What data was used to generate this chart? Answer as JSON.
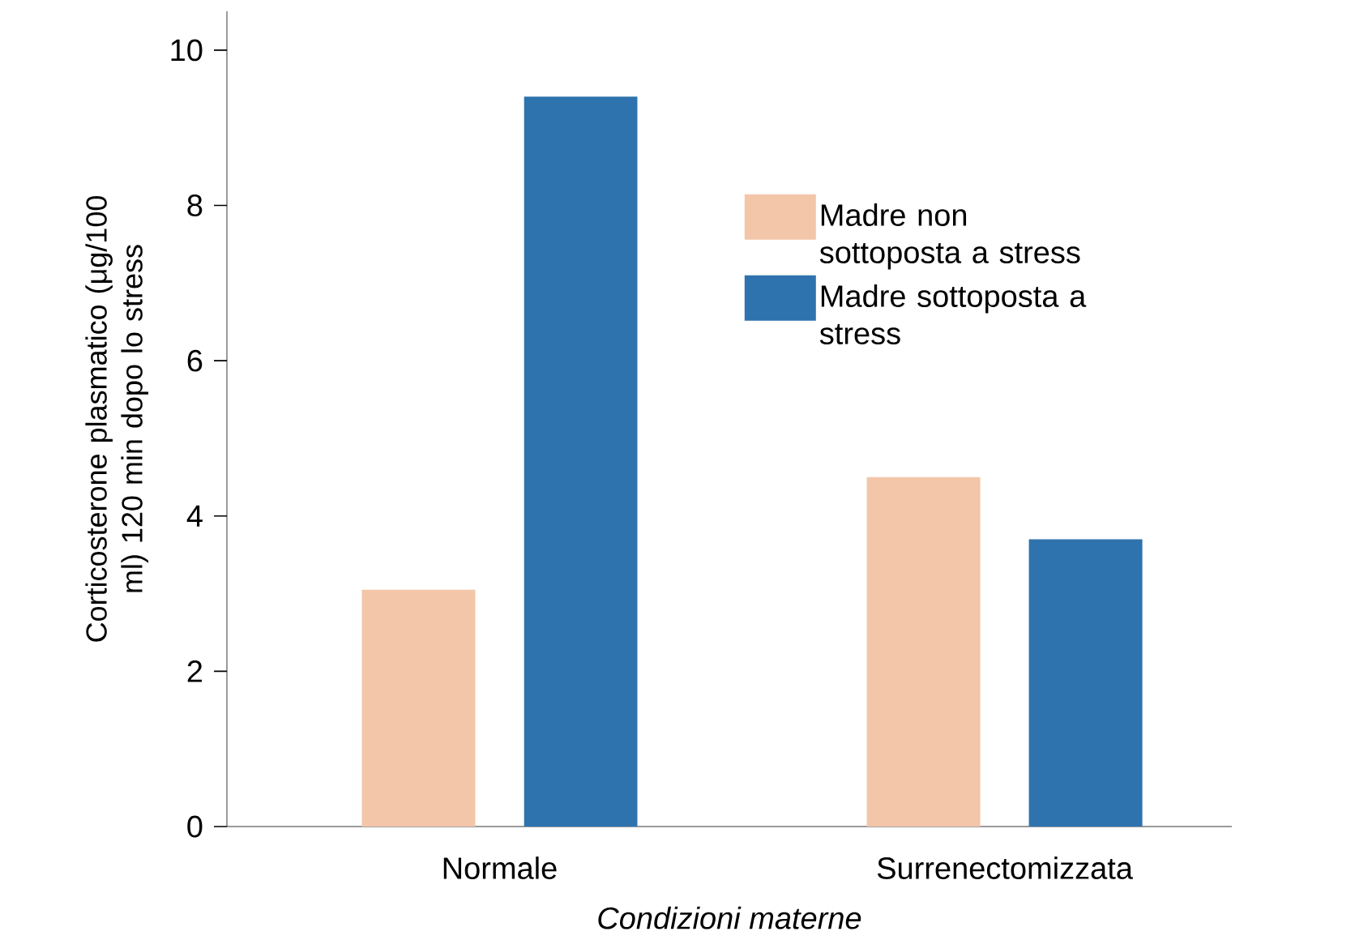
{
  "chart_data": {
    "type": "bar",
    "xlabel": "Condizioni materne",
    "ylabel": "Corticosterone plasmatico (μg/100 ml) 120 min dopo lo stress",
    "categories": [
      "Normale",
      "Surrenectomizzata"
    ],
    "series": [
      {
        "name": "Madre non sottoposta a stress",
        "color": "#f3c6a9",
        "values": [
          3.05,
          4.5
        ]
      },
      {
        "name": "Madre sottoposta a stress",
        "color": "#2e73ad",
        "values": [
          9.4,
          3.7
        ]
      }
    ],
    "ylim": [
      0,
      10.5
    ],
    "yticks": [
      0,
      2,
      4,
      6,
      8,
      10
    ],
    "grid": false,
    "legend": "right"
  }
}
